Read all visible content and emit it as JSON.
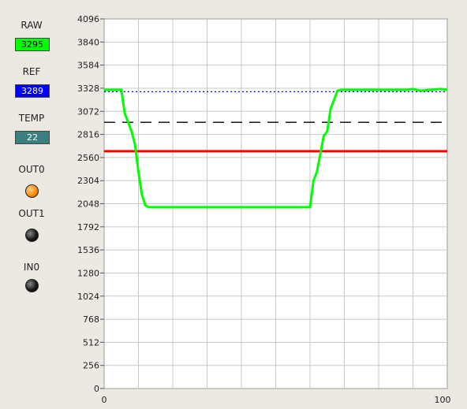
{
  "side": {
    "raw_label": "RAW",
    "raw_value": "3295",
    "ref_label": "REF",
    "ref_value": "3289",
    "temp_label": "TEMP",
    "temp_value": "22",
    "out0_label": "OUT0",
    "out1_label": "OUT1",
    "in0_label": "IN0",
    "colors": {
      "raw_bg": "#00ff00",
      "ref_bg": "#0000ff",
      "temp_bg": "#3c7f80",
      "out0_led": "#ff8800",
      "off_led": "#111111"
    }
  },
  "chart_data": {
    "type": "line",
    "xlim": [
      0,
      100
    ],
    "ylim": [
      0,
      4096
    ],
    "yticks": [
      0,
      256,
      512,
      768,
      1024,
      1280,
      1536,
      1792,
      2048,
      2304,
      2560,
      2816,
      3072,
      3328,
      3584,
      3840,
      4096
    ],
    "xtick_labels": [
      "0",
      "100"
    ],
    "grid": true,
    "series": [
      {
        "color": "#00ff00",
        "style": "solid",
        "x": [
          0,
          5,
          6,
          7,
          8,
          9,
          10,
          11,
          12,
          13,
          60,
          61,
          62,
          63,
          64,
          65,
          66,
          67,
          68,
          69,
          70,
          71,
          72,
          73,
          80,
          85,
          88,
          90,
          92,
          95,
          98,
          100
        ],
        "y": [
          3310,
          3310,
          3050,
          2950,
          2850,
          2700,
          2400,
          2150,
          2030,
          2010,
          2010,
          2300,
          2400,
          2600,
          2800,
          2850,
          3100,
          3200,
          3300,
          3310,
          3310,
          3310,
          3310,
          3310,
          3310,
          3310,
          3310,
          3320,
          3300,
          3310,
          3320,
          3310
        ]
      },
      {
        "color": "#ff0000",
        "style": "solid",
        "x": [
          0,
          100
        ],
        "y": [
          2630,
          2630
        ]
      },
      {
        "color": "#000000",
        "style": "dashed",
        "x": [
          0,
          100
        ],
        "y": [
          2950,
          2950
        ]
      },
      {
        "color": "#0000ff",
        "style": "dotted",
        "x": [
          0,
          100
        ],
        "y": [
          3289,
          3289
        ]
      }
    ]
  }
}
